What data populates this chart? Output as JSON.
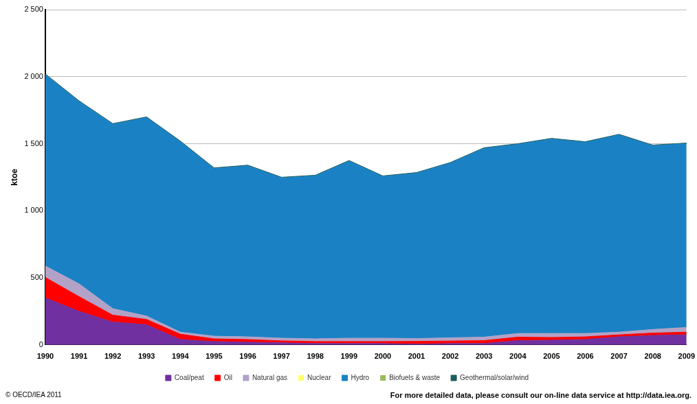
{
  "chart_data": {
    "type": "area",
    "stacked": true,
    "ylabel": "ktoe",
    "categories": [
      "1990",
      "1991",
      "1992",
      "1993",
      "1994",
      "1995",
      "1996",
      "1997",
      "1998",
      "1999",
      "2000",
      "2001",
      "2002",
      "2003",
      "2004",
      "2005",
      "2006",
      "2007",
      "2008",
      "2009"
    ],
    "series": [
      {
        "name": "Coal/peat",
        "color": "#7030a0",
        "values": [
          350,
          250,
          170,
          150,
          40,
          25,
          20,
          15,
          10,
          10,
          10,
          5,
          10,
          10,
          32,
          35,
          40,
          60,
          70,
          75
        ]
      },
      {
        "name": "Oil",
        "color": "#ff0000",
        "values": [
          153,
          110,
          52,
          40,
          40,
          20,
          20,
          15,
          15,
          15,
          15,
          21,
          19,
          22,
          26,
          20,
          20,
          15,
          18,
          20
        ]
      },
      {
        "name": "Natural gas",
        "color": "#b3a2c7",
        "values": [
          85,
          95,
          48,
          25,
          15,
          20,
          20,
          20,
          20,
          25,
          25,
          21,
          24,
          26,
          27,
          30,
          25,
          20,
          27,
          35
        ]
      },
      {
        "name": "Nuclear",
        "color": "#ffff66",
        "values": [
          null,
          null,
          null,
          null,
          null,
          null,
          null,
          null,
          null,
          null,
          null,
          null,
          null,
          null,
          null,
          null,
          null,
          null,
          null,
          null
        ]
      },
      {
        "name": "Hydro",
        "color": "#1a82c4",
        "values": [
          1427,
          1360,
          1375,
          1480,
          1420,
          1250,
          1275,
          1195,
          1215,
          1320,
          1205,
          1233,
          1302,
          1407,
          1410,
          1450,
          1425,
          1470,
          1370,
          1370
        ]
      },
      {
        "name": "Biofuels & waste",
        "color": "#9bbb59",
        "values": [
          null,
          null,
          null,
          null,
          null,
          null,
          null,
          null,
          null,
          null,
          null,
          null,
          null,
          null,
          null,
          null,
          null,
          null,
          null,
          null
        ]
      },
      {
        "name": "Geothermal/solar/wind",
        "color": "#1f5c5c",
        "values": [
          5,
          5,
          5,
          5,
          5,
          5,
          5,
          5,
          5,
          5,
          5,
          5,
          5,
          5,
          5,
          5,
          5,
          5,
          5,
          5
        ]
      }
    ],
    "ylim": [
      0,
      2500
    ],
    "yticks": [
      0,
      {
        "value": 500,
        "label": "500"
      },
      {
        "value": 1000,
        "label": "1 000"
      },
      {
        "value": 1500,
        "label": "1 500"
      },
      {
        "value": 2000,
        "label": "2 000"
      },
      {
        "value": 2500,
        "label": "2 500"
      }
    ],
    "grid": "y",
    "legend": "bottom",
    "annotations": [
      "© OECD/IEA 2011",
      "For more detailed data, please consult our on-line data service at http://data.iea.org."
    ]
  }
}
